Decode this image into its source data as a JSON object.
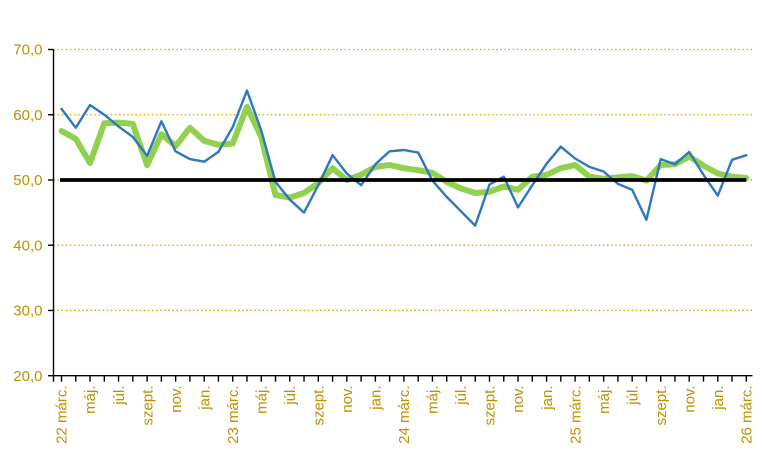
{
  "chart_data": {
    "type": "line",
    "title": "",
    "ylim": [
      20,
      70
    ],
    "ytick_values": [
      70,
      60,
      50,
      40,
      30,
      20
    ],
    "ytick_labels": [
      "70,0",
      "60,0",
      "50,0",
      "40,0",
      "30,0",
      "20,0"
    ],
    "gridline_values": [
      70,
      60,
      50,
      40,
      30
    ],
    "months_count": 49,
    "label_every": 2,
    "x_tick_labels": [
      "22 márc.",
      "máj.",
      "júl.",
      "szept.",
      "nov.",
      "jan.",
      "23 márc.",
      "máj.",
      "júl.",
      "szept.",
      "nov.",
      "jan.",
      "24 márc.",
      "máj.",
      "júl.",
      "szept.",
      "nov.",
      "jan.",
      "25 márc.",
      "máj.",
      "júl.",
      "szept.",
      "nov.",
      "jan.",
      "26 márc."
    ],
    "reference_line": {
      "value": 50,
      "color": "#000000",
      "width": 3.8
    },
    "grid": {
      "color": "#D6A400",
      "style": "dotted",
      "width": 1.3
    },
    "axis_color": "#000000",
    "label_color": "#BF9000",
    "legend": "none",
    "series": [
      {
        "name": "green-line",
        "color": "#92D050",
        "width": 6,
        "values": [
          57.5,
          56.3,
          52.6,
          58.7,
          58.8,
          58.6,
          52.3,
          57.0,
          55.2,
          58.0,
          56.0,
          55.4,
          55.6,
          61.2,
          56.6,
          47.7,
          47.3,
          48.0,
          49.5,
          51.8,
          50.0,
          50.8,
          52.0,
          52.3,
          51.8,
          51.5,
          51.1,
          49.7,
          48.7,
          48.0,
          48.2,
          49.0,
          48.5,
          50.5,
          50.8,
          51.8,
          52.3,
          50.5,
          50.2,
          50.4,
          50.6,
          49.9,
          52.3,
          52.4,
          53.6,
          52.2,
          51.0,
          50.5,
          50.3
        ]
      },
      {
        "name": "blue-line",
        "color": "#2E78BE",
        "width": 2.4,
        "values": [
          60.9,
          58.0,
          61.5,
          60.0,
          58.2,
          56.6,
          53.7,
          59.0,
          54.4,
          53.2,
          52.8,
          54.3,
          58.1,
          63.7,
          57.6,
          49.7,
          47.0,
          45.0,
          49.2,
          53.8,
          51.0,
          49.2,
          52.4,
          54.4,
          54.6,
          54.2,
          49.9,
          47.4,
          45.2,
          43.0,
          49.3,
          50.5,
          45.8,
          49.2,
          52.5,
          55.1,
          53.3,
          52.0,
          51.3,
          49.4,
          48.5,
          43.9,
          53.2,
          52.4,
          54.3,
          50.8,
          47.6,
          53.1,
          53.8
        ]
      }
    ]
  }
}
